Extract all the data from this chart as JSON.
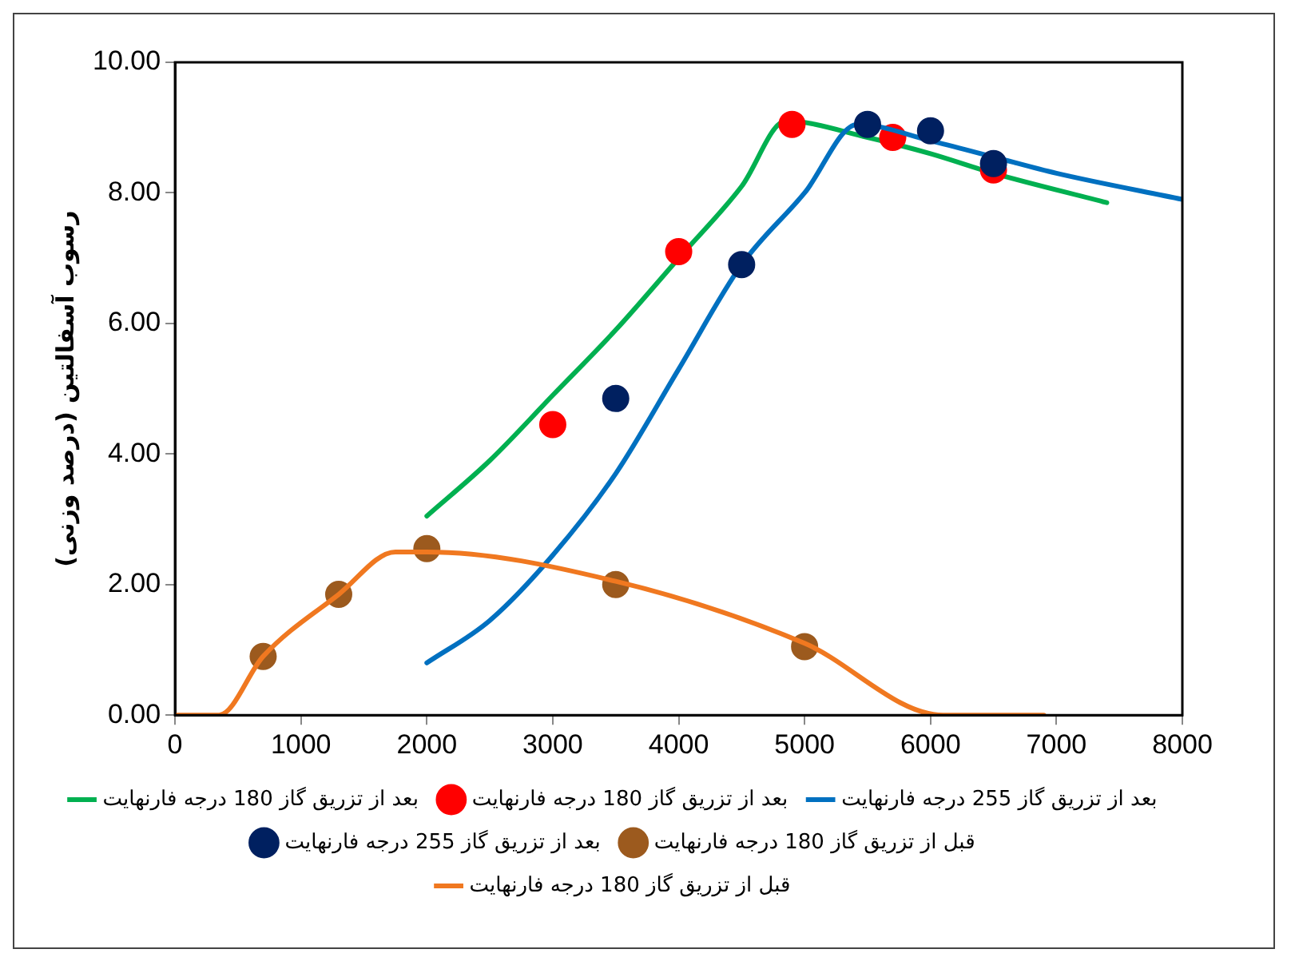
{
  "chart_data": {
    "type": "line",
    "ylabel": "رسوب آسفالتین (درصد وزنی)",
    "xlim": [
      0,
      8000
    ],
    "xticks": [
      0,
      1000,
      2000,
      3000,
      4000,
      5000,
      6000,
      7000,
      8000
    ],
    "ylim": [
      0,
      10
    ],
    "yticks": [
      {
        "value": 0,
        "label": "0.00"
      },
      {
        "value": 2,
        "label": "2.00"
      },
      {
        "value": 4,
        "label": "4.00"
      },
      {
        "value": 6,
        "label": "6.00"
      },
      {
        "value": 8,
        "label": "8.00"
      },
      {
        "value": 10,
        "label": "10.00"
      }
    ],
    "grid": false,
    "legend": "bottom",
    "series": [
      {
        "name": "بعد از تزریق گاز 180 درجه فارنهایت",
        "type": "line",
        "marker": "none",
        "color": "#00b050",
        "x": [
          2000,
          2500,
          3000,
          3500,
          4000,
          4500,
          4850,
          5500,
          6000,
          6500,
          7400
        ],
        "values": [
          3.05,
          3.9,
          4.9,
          5.9,
          7.0,
          8.1,
          9.1,
          8.85,
          8.6,
          8.3,
          7.85
        ]
      },
      {
        "name": "بعد از تزریق گاز 180 درجه فارنهایت",
        "type": "scatter",
        "marker": "circle",
        "color": "#ff0000",
        "x": [
          3000,
          4000,
          4900,
          5700,
          6500
        ],
        "values": [
          4.45,
          7.1,
          9.05,
          8.85,
          8.35
        ]
      },
      {
        "name": "بعد از تزریق گاز 255 درجه فارنهایت",
        "type": "line",
        "marker": "none",
        "color": "#0070c0",
        "x": [
          2000,
          2500,
          3000,
          3500,
          4000,
          4500,
          5000,
          5420,
          6000,
          6500,
          7000,
          8000
        ],
        "values": [
          0.8,
          1.45,
          2.45,
          3.7,
          5.3,
          6.9,
          8.0,
          9.05,
          8.8,
          8.55,
          8.3,
          7.9
        ]
      },
      {
        "name": "بعد از تزریق گاز 255 درجه فارنهایت",
        "type": "scatter",
        "marker": "circle",
        "color": "#002060",
        "x": [
          3500,
          4500,
          5500,
          6000,
          6500
        ],
        "values": [
          4.85,
          6.9,
          9.05,
          8.95,
          8.45
        ]
      },
      {
        "name": "قبل از تزریق گاز 180 درجه فارنهایت",
        "type": "scatter",
        "marker": "circle",
        "color": "#9c5a1e",
        "x": [
          700,
          1300,
          2000,
          3500,
          5000
        ],
        "values": [
          0.9,
          1.85,
          2.55,
          2.0,
          1.05
        ]
      },
      {
        "name": "قبل از تزریق گاز 180 درجه فارنهایت",
        "type": "line",
        "marker": "none",
        "color": "#f07820",
        "x": [
          0,
          350,
          700,
          1300,
          1750,
          2000,
          3500,
          5000,
          6100,
          6900
        ],
        "values": [
          0,
          0,
          0.9,
          1.85,
          2.5,
          2.5,
          2.05,
          1.1,
          0,
          0
        ]
      }
    ]
  }
}
